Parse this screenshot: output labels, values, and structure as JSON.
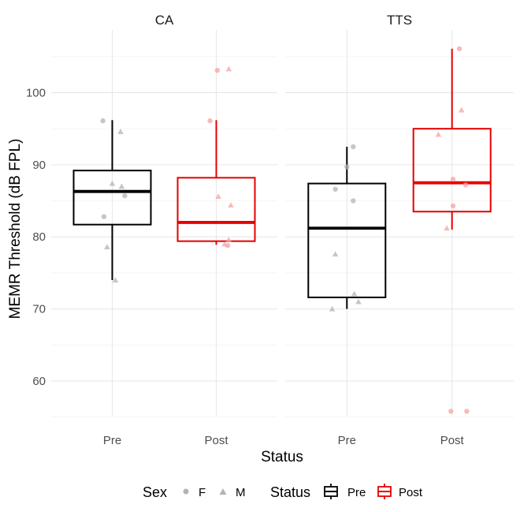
{
  "chart_data": {
    "type": "boxplot",
    "xlabel": "Status",
    "ylabel": "MEMR Threshold (dB FPL)",
    "ylim": [
      55,
      108
    ],
    "y_ticks": [
      60,
      70,
      80,
      90,
      100
    ],
    "categories": [
      "Pre",
      "Post"
    ],
    "grid": true,
    "colors": {
      "Pre": "#000000",
      "Post": "#e60000"
    },
    "facets": [
      {
        "label": "CA",
        "boxes": [
          {
            "status": "Pre",
            "q1": 81.7,
            "median": 86.3,
            "q3": 89.2,
            "whisker_low": 74.0,
            "whisker_high": 96.2
          },
          {
            "status": "Post",
            "q1": 79.4,
            "median": 82.0,
            "q3": 88.2,
            "whisker_low": 78.9,
            "whisker_high": 96.2
          }
        ],
        "points": [
          {
            "status": "Pre",
            "sex": "F",
            "dx": -0.09,
            "y": 96.1
          },
          {
            "status": "Pre",
            "sex": "F",
            "dx": -0.08,
            "y": 82.8
          },
          {
            "status": "Pre",
            "sex": "F",
            "dx": 0.12,
            "y": 85.7
          },
          {
            "status": "Pre",
            "sex": "M",
            "dx": 0.08,
            "y": 94.6
          },
          {
            "status": "Pre",
            "sex": "M",
            "dx": 0.0,
            "y": 87.4
          },
          {
            "status": "Pre",
            "sex": "M",
            "dx": 0.09,
            "y": 87.0
          },
          {
            "status": "Pre",
            "sex": "M",
            "dx": -0.05,
            "y": 78.6
          },
          {
            "status": "Pre",
            "sex": "M",
            "dx": 0.03,
            "y": 74.0
          },
          {
            "status": "Post",
            "sex": "F",
            "dx": -0.06,
            "y": 96.1
          },
          {
            "status": "Post",
            "sex": "F",
            "dx": 0.01,
            "y": 103.1
          },
          {
            "status": "Post",
            "sex": "F",
            "dx": 0.11,
            "y": 78.8
          },
          {
            "status": "Post",
            "sex": "M",
            "dx": 0.12,
            "y": 103.3
          },
          {
            "status": "Post",
            "sex": "M",
            "dx": 0.02,
            "y": 85.6
          },
          {
            "status": "Post",
            "sex": "M",
            "dx": 0.14,
            "y": 84.4
          },
          {
            "status": "Post",
            "sex": "M",
            "dx": 0.12,
            "y": 79.6
          },
          {
            "status": "Post",
            "sex": "M",
            "dx": 0.08,
            "y": 79.0
          }
        ]
      },
      {
        "label": "TTS",
        "boxes": [
          {
            "status": "Pre",
            "q1": 71.6,
            "median": 81.2,
            "q3": 87.4,
            "whisker_low": 70.0,
            "whisker_high": 92.5
          },
          {
            "status": "Post",
            "q1": 83.5,
            "median": 87.5,
            "q3": 95.0,
            "whisker_low": 81.0,
            "whisker_high": 106.1
          }
        ],
        "points": [
          {
            "status": "Pre",
            "sex": "F",
            "dx": 0.06,
            "y": 92.5
          },
          {
            "status": "Pre",
            "sex": "F",
            "dx": 0.0,
            "y": 89.7
          },
          {
            "status": "Pre",
            "sex": "F",
            "dx": -0.11,
            "y": 86.6
          },
          {
            "status": "Pre",
            "sex": "F",
            "dx": 0.06,
            "y": 85.0
          },
          {
            "status": "Pre",
            "sex": "M",
            "dx": -0.11,
            "y": 77.6
          },
          {
            "status": "Pre",
            "sex": "M",
            "dx": 0.07,
            "y": 72.1
          },
          {
            "status": "Pre",
            "sex": "M",
            "dx": 0.11,
            "y": 71.0
          },
          {
            "status": "Pre",
            "sex": "M",
            "dx": -0.14,
            "y": 70.0
          },
          {
            "status": "Post",
            "sex": "F",
            "dx": 0.07,
            "y": 106.1
          },
          {
            "status": "Post",
            "sex": "F",
            "dx": 0.01,
            "y": 88.0
          },
          {
            "status": "Post",
            "sex": "F",
            "dx": 0.13,
            "y": 87.2
          },
          {
            "status": "Post",
            "sex": "F",
            "dx": 0.01,
            "y": 84.3
          },
          {
            "status": "Post",
            "sex": "F",
            "dx": -0.01,
            "y": 55.8
          },
          {
            "status": "Post",
            "sex": "F",
            "dx": 0.14,
            "y": 55.8
          },
          {
            "status": "Post",
            "sex": "M",
            "dx": 0.09,
            "y": 97.6
          },
          {
            "status": "Post",
            "sex": "M",
            "dx": -0.13,
            "y": 94.2
          },
          {
            "status": "Post",
            "sex": "M",
            "dx": -0.05,
            "y": 81.2
          }
        ]
      }
    ],
    "legend": {
      "position": "bottom",
      "sex": {
        "title": "Sex",
        "items": [
          {
            "label": "F",
            "shape": "circle"
          },
          {
            "label": "M",
            "shape": "triangle"
          }
        ]
      },
      "status": {
        "title": "Status",
        "items": [
          {
            "label": "Pre"
          },
          {
            "label": "Post"
          }
        ]
      }
    }
  }
}
